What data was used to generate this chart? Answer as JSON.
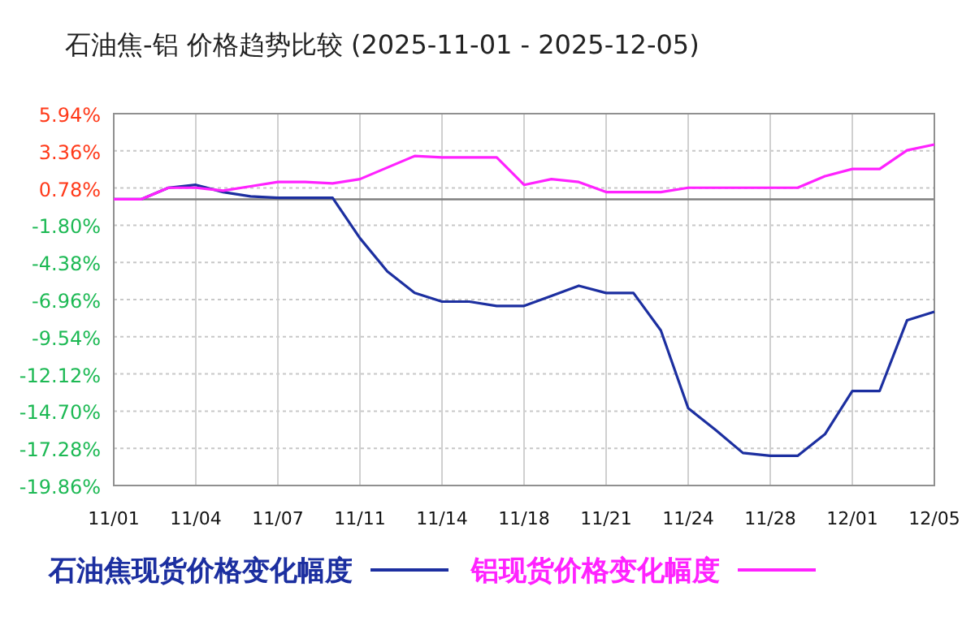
{
  "chart_data": {
    "type": "line",
    "title": "石油焦-铝 价格趋势比较 (2025-11-01 - 2025-12-05)",
    "categories": [
      "11/01",
      null,
      null,
      "11/04",
      null,
      null,
      "11/07",
      null,
      null,
      "11/11",
      null,
      null,
      "11/14",
      null,
      null,
      "11/18",
      null,
      null,
      "11/21",
      null,
      null,
      "11/24",
      null,
      null,
      "11/28",
      null,
      null,
      "12/01",
      null,
      null,
      "12/05"
    ],
    "series": [
      {
        "name": "石油焦现货价格变化幅度",
        "color": "#1c2fa0",
        "values": [
          0,
          0,
          0.8,
          1.0,
          0.5,
          0.2,
          0.1,
          0.1,
          0.1,
          -2.7,
          -5.0,
          -6.5,
          -7.1,
          -7.1,
          -7.4,
          -7.4,
          -6.7,
          -6.0,
          -6.5,
          -6.5,
          -9.1,
          -14.5,
          -16.0,
          -17.6,
          -17.8,
          -17.8,
          -16.3,
          -13.3,
          -13.3,
          -8.4,
          -7.8
        ]
      },
      {
        "name": "铝现货价格变化幅度",
        "color": "#ff22ff",
        "values": [
          0,
          0,
          0.8,
          0.8,
          0.6,
          0.9,
          1.2,
          1.2,
          1.1,
          1.4,
          2.2,
          3.0,
          2.9,
          2.9,
          2.9,
          1.0,
          1.4,
          1.2,
          0.5,
          0.5,
          0.5,
          0.8,
          0.8,
          0.8,
          0.8,
          0.8,
          1.6,
          2.1,
          2.1,
          3.4,
          3.8
        ]
      }
    ],
    "ylim": [
      -19.86,
      5.94
    ],
    "yticks": [
      {
        "value": 5.94,
        "label": "5.94%"
      },
      {
        "value": 3.36,
        "label": "3.36%"
      },
      {
        "value": 0.78,
        "label": "0.78%"
      },
      {
        "value": -1.8,
        "label": "-1.80%"
      },
      {
        "value": -4.38,
        "label": "-4.38%"
      },
      {
        "value": -6.96,
        "label": "-6.96%"
      },
      {
        "value": -9.54,
        "label": "-9.54%"
      },
      {
        "value": -12.12,
        "label": "-12.12%"
      },
      {
        "value": -14.7,
        "label": "-14.70%"
      },
      {
        "value": -17.28,
        "label": "-17.28%"
      },
      {
        "value": -19.86,
        "label": "-19.86%"
      }
    ],
    "ref_lines": [
      {
        "axis": "y",
        "value": 0,
        "color": "#808080"
      }
    ],
    "grid": true,
    "legend": "bottom"
  }
}
